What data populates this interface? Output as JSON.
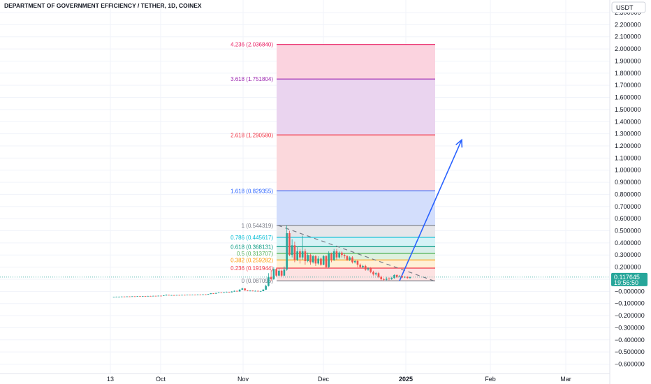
{
  "header": {
    "title": "DEPARTMENT OF GOVERNMENT EFFICIENCY / TETHER, 1D, COINEX"
  },
  "price_axis": {
    "currency": "USDT",
    "last_price": "0.117645",
    "countdown": "19:56:50"
  },
  "chart_data": {
    "type": "candlestick",
    "title": "DEPARTMENT OF GOVERNMENT EFFICIENCY / TETHER, 1D, COINEX",
    "y_ticks": [
      "2.300000",
      "2.200000",
      "2.100000",
      "2.000000",
      "1.900000",
      "1.800000",
      "1.700000",
      "1.600000",
      "1.500000",
      "1.400000",
      "1.300000",
      "1.200000",
      "1.100000",
      "1.000000",
      "0.900000",
      "0.800000",
      "0.700000",
      "0.600000",
      "0.500000",
      "0.400000",
      "0.300000",
      "0.200000",
      "0.100000",
      "−0.000000",
      "−0.100000",
      "−0.200000",
      "−0.300000",
      "−0.400000",
      "−0.500000",
      "−0.600000"
    ],
    "ylim": [
      -0.65,
      2.32
    ],
    "x_ticks": [
      "13",
      "Oct",
      "Nov",
      "Dec",
      "2025",
      "Feb",
      "Mar"
    ],
    "last_price": 0.117645,
    "colors": {
      "up": "#26a69a",
      "down": "#ef5350",
      "arrow": "#2962ff",
      "price_line": "#26a69a"
    },
    "fib_levels": [
      {
        "label": "0 (0.087095)",
        "ratio": 0,
        "value": 0.087095,
        "color": "#787b86",
        "fill": "#eceef3"
      },
      {
        "label": "0.236 (0.191944)",
        "ratio": 0.236,
        "value": 0.191944,
        "color": "#f23645",
        "fill": "#fde2e2"
      },
      {
        "label": "0.382 (0.259282)",
        "ratio": 0.382,
        "value": 0.259282,
        "color": "#ff9800",
        "fill": "#fff0d6"
      },
      {
        "label": "0.5 (0.313707)",
        "ratio": 0.5,
        "value": 0.313707,
        "color": "#4caf50",
        "fill": "#def1df"
      },
      {
        "label": "0.618 (0.368131)",
        "ratio": 0.618,
        "value": 0.368131,
        "color": "#089981",
        "fill": "#d7eee9"
      },
      {
        "label": "0.786 (0.445617)",
        "ratio": 0.786,
        "value": 0.445617,
        "color": "#00bcd4",
        "fill": "#d4f2f6"
      },
      {
        "label": "1 (0.544319)",
        "ratio": 1,
        "value": 0.544319,
        "color": "#787b86",
        "fill": "#e6e6ea"
      },
      {
        "label": "1.618 (0.829355)",
        "ratio": 1.618,
        "value": 0.829355,
        "color": "#2962ff",
        "fill": "#d3defc"
      },
      {
        "label": "2.618 (1.290580)",
        "ratio": 2.618,
        "value": 1.29058,
        "color": "#f23645",
        "fill": "#fbd8dc"
      },
      {
        "label": "3.618 (1.751804)",
        "ratio": 3.618,
        "value": 1.751804,
        "color": "#9c27b0",
        "fill": "#ead4ef"
      },
      {
        "label": "4.236 (2.036840)",
        "ratio": 4.236,
        "value": 2.03684,
        "color": "#e91e63",
        "fill": "#fbd3df"
      }
    ],
    "candles": [
      [
        -0.045,
        -0.045,
        -0.046,
        -0.044
      ],
      [
        -0.045,
        -0.044,
        -0.046,
        -0.043
      ],
      [
        -0.044,
        -0.044,
        -0.045,
        -0.043
      ],
      [
        -0.044,
        -0.043,
        -0.045,
        -0.042
      ],
      [
        -0.043,
        -0.044,
        -0.045,
        -0.042
      ],
      [
        -0.044,
        -0.042,
        -0.045,
        -0.041
      ],
      [
        -0.042,
        -0.043,
        -0.044,
        -0.041
      ],
      [
        -0.043,
        -0.041,
        -0.044,
        -0.04
      ],
      [
        -0.041,
        -0.042,
        -0.043,
        -0.04
      ],
      [
        -0.042,
        -0.04,
        -0.043,
        -0.039
      ],
      [
        -0.04,
        -0.041,
        -0.042,
        -0.039
      ],
      [
        -0.041,
        -0.039,
        -0.042,
        -0.038
      ],
      [
        -0.039,
        -0.04,
        -0.041,
        -0.038
      ],
      [
        -0.04,
        -0.038,
        -0.041,
        -0.037
      ],
      [
        -0.038,
        -0.039,
        -0.04,
        -0.037
      ],
      [
        -0.039,
        -0.037,
        -0.04,
        -0.036
      ],
      [
        -0.037,
        -0.038,
        -0.039,
        -0.036
      ],
      [
        -0.038,
        -0.036,
        -0.039,
        -0.035
      ],
      [
        -0.036,
        -0.037,
        -0.038,
        -0.035
      ],
      [
        -0.037,
        -0.034,
        -0.038,
        -0.033
      ],
      [
        -0.034,
        -0.029,
        -0.035,
        -0.025
      ],
      [
        -0.029,
        -0.033,
        -0.034,
        -0.028
      ],
      [
        -0.033,
        -0.031,
        -0.034,
        -0.03
      ],
      [
        -0.031,
        -0.032,
        -0.033,
        -0.03
      ],
      [
        -0.032,
        -0.03,
        -0.033,
        -0.029
      ],
      [
        -0.03,
        -0.031,
        -0.032,
        -0.029
      ],
      [
        -0.031,
        -0.029,
        -0.032,
        -0.028
      ],
      [
        -0.029,
        -0.03,
        -0.031,
        -0.028
      ],
      [
        -0.03,
        -0.028,
        -0.031,
        -0.027
      ],
      [
        -0.028,
        -0.029,
        -0.03,
        -0.027
      ],
      [
        -0.029,
        -0.027,
        -0.03,
        -0.026
      ],
      [
        -0.027,
        -0.028,
        -0.029,
        -0.026
      ],
      [
        -0.028,
        -0.026,
        -0.029,
        -0.025
      ],
      [
        -0.026,
        -0.027,
        -0.028,
        -0.025
      ],
      [
        -0.027,
        -0.025,
        -0.028,
        -0.024
      ],
      [
        -0.025,
        -0.026,
        -0.027,
        -0.024
      ],
      [
        -0.026,
        -0.022,
        -0.027,
        -0.021
      ],
      [
        -0.022,
        -0.016,
        -0.023,
        -0.014
      ],
      [
        -0.016,
        -0.019,
        -0.02,
        -0.015
      ],
      [
        -0.019,
        -0.013,
        -0.02,
        -0.012
      ],
      [
        -0.013,
        -0.009,
        -0.014,
        -0.006
      ],
      [
        -0.009,
        -0.012,
        -0.013,
        -0.008
      ],
      [
        -0.012,
        -0.007,
        -0.013,
        -0.006
      ],
      [
        -0.007,
        -0.004,
        -0.008,
        -0.002
      ],
      [
        -0.004,
        -0.008,
        -0.009,
        -0.003
      ],
      [
        -0.008,
        -0.002,
        -0.009,
        0.002
      ],
      [
        -0.002,
        0.004,
        -0.003,
        0.007
      ],
      [
        0.004,
        -0.001,
        -0.002,
        0.005
      ],
      [
        -0.001,
        0.014,
        -0.002,
        0.018
      ],
      [
        0.014,
        0.024,
        0.012,
        0.03
      ],
      [
        0.024,
        0.008,
        0.006,
        0.026
      ],
      [
        0.008,
        0.003,
        0.001,
        0.01
      ],
      [
        0.003,
        0.006,
        0.0,
        0.009
      ],
      [
        0.006,
        0.002,
        0.0,
        0.008
      ],
      [
        0.002,
        0.004,
        0.0,
        0.007
      ],
      [
        0.004,
        0.001,
        -0.001,
        0.006
      ],
      [
        0.001,
        0.002,
        -0.001,
        0.005
      ],
      [
        0.002,
        0.014,
        0.001,
        0.02
      ],
      [
        0.014,
        0.045,
        0.012,
        0.055
      ],
      [
        0.045,
        0.12,
        0.04,
        0.15
      ],
      [
        0.12,
        0.1,
        0.085,
        0.175
      ],
      [
        0.1,
        0.185,
        0.095,
        0.2
      ],
      [
        0.185,
        0.13,
        0.12,
        0.195
      ],
      [
        0.13,
        0.17,
        0.125,
        0.19
      ],
      [
        0.17,
        0.13,
        0.12,
        0.18
      ],
      [
        0.13,
        0.18,
        0.125,
        0.205
      ],
      [
        0.18,
        0.48,
        0.17,
        0.544
      ],
      [
        0.48,
        0.3,
        0.29,
        0.5
      ],
      [
        0.3,
        0.38,
        0.28,
        0.43
      ],
      [
        0.38,
        0.26,
        0.24,
        0.41
      ],
      [
        0.26,
        0.33,
        0.25,
        0.37
      ],
      [
        0.33,
        0.28,
        0.23,
        0.35
      ],
      [
        0.28,
        0.33,
        0.26,
        0.46
      ],
      [
        0.33,
        0.25,
        0.22,
        0.35
      ],
      [
        0.25,
        0.3,
        0.24,
        0.32
      ],
      [
        0.3,
        0.24,
        0.22,
        0.31
      ],
      [
        0.24,
        0.29,
        0.23,
        0.3
      ],
      [
        0.29,
        0.23,
        0.21,
        0.3
      ],
      [
        0.23,
        0.27,
        0.22,
        0.29
      ],
      [
        0.27,
        0.22,
        0.21,
        0.28
      ],
      [
        0.22,
        0.29,
        0.215,
        0.3
      ],
      [
        0.29,
        0.2,
        0.19,
        0.3
      ],
      [
        0.2,
        0.31,
        0.195,
        0.33
      ],
      [
        0.31,
        0.26,
        0.24,
        0.32
      ],
      [
        0.26,
        0.33,
        0.25,
        0.35
      ],
      [
        0.33,
        0.28,
        0.26,
        0.35
      ],
      [
        0.28,
        0.32,
        0.27,
        0.33
      ],
      [
        0.32,
        0.3,
        0.28,
        0.33
      ],
      [
        0.3,
        0.29,
        0.27,
        0.31
      ],
      [
        0.29,
        0.26,
        0.25,
        0.3
      ],
      [
        0.26,
        0.28,
        0.25,
        0.29
      ],
      [
        0.28,
        0.24,
        0.23,
        0.29
      ],
      [
        0.24,
        0.25,
        0.23,
        0.26
      ],
      [
        0.25,
        0.22,
        0.2,
        0.26
      ],
      [
        0.22,
        0.2,
        0.19,
        0.23
      ],
      [
        0.2,
        0.21,
        0.19,
        0.22
      ],
      [
        0.21,
        0.18,
        0.17,
        0.22
      ],
      [
        0.18,
        0.19,
        0.17,
        0.2
      ],
      [
        0.19,
        0.16,
        0.15,
        0.2
      ],
      [
        0.16,
        0.14,
        0.13,
        0.17
      ],
      [
        0.14,
        0.15,
        0.13,
        0.16
      ],
      [
        0.15,
        0.12,
        0.11,
        0.16
      ],
      [
        0.12,
        0.1,
        0.09,
        0.13
      ],
      [
        0.1,
        0.095,
        0.087,
        0.11
      ],
      [
        0.095,
        0.105,
        0.09,
        0.12
      ],
      [
        0.105,
        0.1,
        0.092,
        0.115
      ],
      [
        0.1,
        0.11,
        0.095,
        0.12
      ],
      [
        0.11,
        0.135,
        0.105,
        0.14
      ],
      [
        0.135,
        0.12,
        0.11,
        0.14
      ],
      [
        0.12,
        0.125,
        0.115,
        0.135
      ],
      [
        0.125,
        0.115,
        0.11,
        0.13
      ],
      [
        0.115,
        0.12,
        0.11,
        0.125
      ],
      [
        0.12,
        0.11,
        0.105,
        0.125
      ],
      [
        0.11,
        0.118,
        0.105,
        0.122
      ]
    ],
    "trendline": {
      "from_value": 0.544319,
      "to_value": 0.087095
    },
    "projection_arrow": {
      "from_value": 0.087095,
      "to_value": 1.25
    }
  }
}
